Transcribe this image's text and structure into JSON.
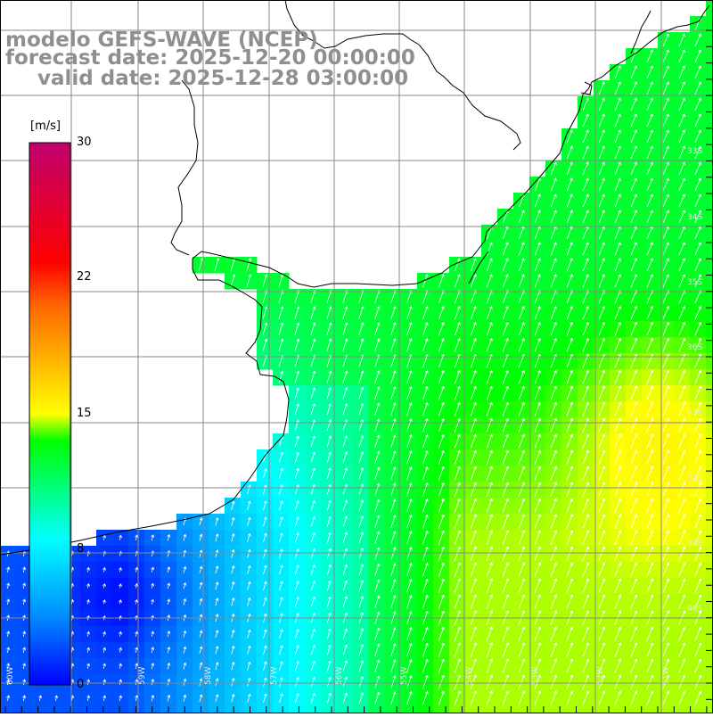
{
  "header": {
    "model": "modelo GEFS-WAVE (NCEP)",
    "forecast_date": "forecast date: 2025-12-20 00:00:00",
    "valid_date": "valid date: 2025-12-28 03:00:00"
  },
  "colorbar": {
    "unit": "[m/s]",
    "ticks": [
      "30",
      "22",
      "15",
      "8",
      "0"
    ],
    "min": 0,
    "max": 30,
    "colors": [
      "#0000ff",
      "#0090ff",
      "#00ffff",
      "#00ff00",
      "#ffff00",
      "#ff6600",
      "#ff0000",
      "#c0006e"
    ]
  },
  "map": {
    "lat_labels": [
      "33S",
      "34S",
      "35S",
      "36S",
      "37S",
      "38S",
      "39S",
      "40S"
    ],
    "lon_labels": [
      "60W",
      "59W",
      "58W",
      "57W",
      "56W",
      "55W",
      "54W",
      "53W",
      "52W",
      "51W"
    ],
    "wind_direction": "from south-west toward north-east",
    "land_color": "#ffffff",
    "grid_color": "#888888",
    "coast_color": "#000000"
  }
}
